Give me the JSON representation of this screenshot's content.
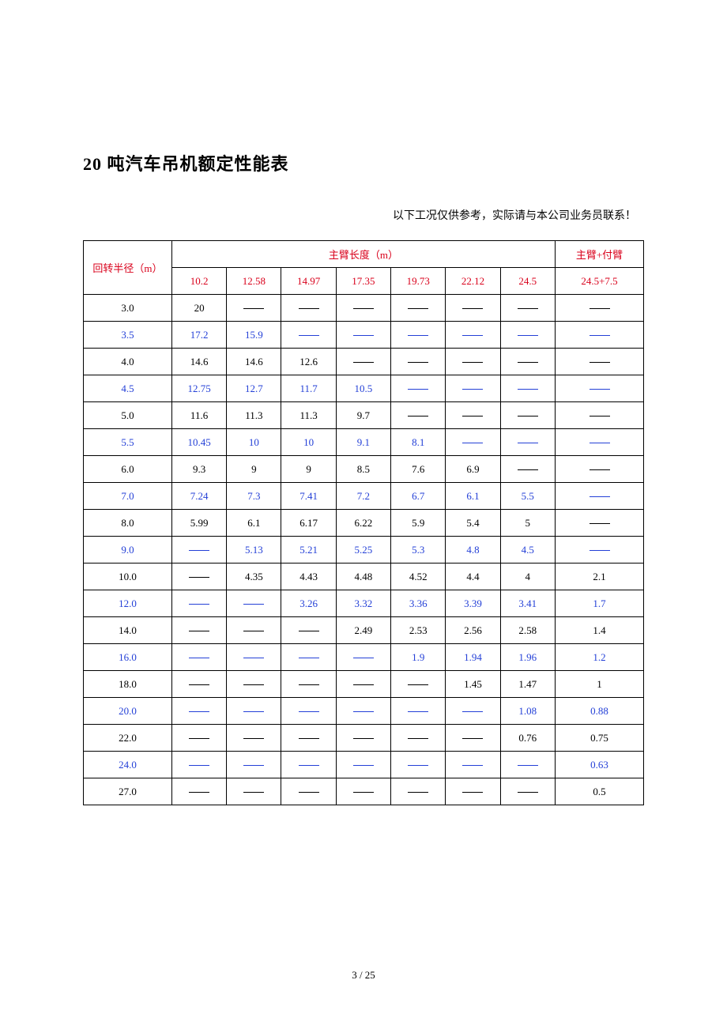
{
  "title": "20 吨汽车吊机额定性能表",
  "subtitle": "以下工况仅供参考，实际请与本公司业务员联系！",
  "page_number": "3 / 25",
  "header": {
    "radius_label": "回转半径（m）",
    "boom_length_label": "主臂长度（m）",
    "jib_label": "主臂+付臂",
    "boom_lengths": [
      "10.2",
      "12.58",
      "14.97",
      "17.35",
      "19.73",
      "22.12",
      "24.5"
    ],
    "jib_length": "24.5+7.5"
  },
  "colors": {
    "header_red": "#d9001b",
    "blue": "#2440d7",
    "black": "#000000",
    "border": "#000000",
    "background": "#ffffff"
  },
  "rows": [
    {
      "radius": "3.0",
      "blue": false,
      "cells": [
        "20",
        "—",
        "—",
        "—",
        "—",
        "—",
        "—",
        "—"
      ]
    },
    {
      "radius": "3.5",
      "blue": true,
      "cells": [
        "17.2",
        "15.9",
        "—",
        "—",
        "—",
        "—",
        "—",
        "—"
      ]
    },
    {
      "radius": "4.0",
      "blue": false,
      "cells": [
        "14.6",
        "14.6",
        "12.6",
        "—",
        "—",
        "—",
        "—",
        "—"
      ]
    },
    {
      "radius": "4.5",
      "blue": true,
      "cells": [
        "12.75",
        "12.7",
        "11.7",
        "10.5",
        "—",
        "—",
        "—",
        "—"
      ]
    },
    {
      "radius": "5.0",
      "blue": false,
      "cells": [
        "11.6",
        "11.3",
        "11.3",
        "9.7",
        "—",
        "—",
        "—",
        "—"
      ]
    },
    {
      "radius": "5.5",
      "blue": true,
      "cells": [
        "10.45",
        "10",
        "10",
        "9.1",
        "8.1",
        "—",
        "—",
        "—"
      ]
    },
    {
      "radius": "6.0",
      "blue": false,
      "cells": [
        "9.3",
        "9",
        "9",
        "8.5",
        "7.6",
        "6.9",
        "—",
        "—"
      ]
    },
    {
      "radius": "7.0",
      "blue": true,
      "cells": [
        "7.24",
        "7.3",
        "7.41",
        "7.2",
        "6.7",
        "6.1",
        "5.5",
        "—"
      ]
    },
    {
      "radius": "8.0",
      "blue": false,
      "cells": [
        "5.99",
        "6.1",
        "6.17",
        "6.22",
        "5.9",
        "5.4",
        "5",
        "—"
      ]
    },
    {
      "radius": "9.0",
      "blue": true,
      "cells": [
        "—",
        "5.13",
        "5.21",
        "5.25",
        "5.3",
        "4.8",
        "4.5",
        "—"
      ]
    },
    {
      "radius": "10.0",
      "blue": false,
      "cells": [
        "—",
        "4.35",
        "4.43",
        "4.48",
        "4.52",
        "4.4",
        "4",
        "2.1"
      ]
    },
    {
      "radius": "12.0",
      "blue": true,
      "cells": [
        "—",
        "—",
        "3.26",
        "3.32",
        "3.36",
        "3.39",
        "3.41",
        "1.7"
      ]
    },
    {
      "radius": "14.0",
      "blue": false,
      "cells": [
        "—",
        "—",
        "—",
        "2.49",
        "2.53",
        "2.56",
        "2.58",
        "1.4"
      ]
    },
    {
      "radius": "16.0",
      "blue": true,
      "cells": [
        "—",
        "—",
        "—",
        "—",
        "1.9",
        "1.94",
        "1.96",
        "1.2"
      ]
    },
    {
      "radius": "18.0",
      "blue": false,
      "cells": [
        "—",
        "—",
        "—",
        "—",
        "—",
        "1.45",
        "1.47",
        "1"
      ]
    },
    {
      "radius": "20.0",
      "blue": true,
      "cells": [
        "—",
        "—",
        "—",
        "—",
        "—",
        "—",
        "1.08",
        "0.88"
      ]
    },
    {
      "radius": "22.0",
      "blue": false,
      "cells": [
        "—",
        "—",
        "—",
        "—",
        "—",
        "—",
        "0.76",
        "0.75"
      ]
    },
    {
      "radius": "24.0",
      "blue": true,
      "cells": [
        "—",
        "—",
        "—",
        "—",
        "—",
        "—",
        "—",
        "0.63"
      ]
    },
    {
      "radius": "27.0",
      "blue": false,
      "cells": [
        "—",
        "—",
        "—",
        "—",
        "—",
        "—",
        "—",
        "0.5"
      ]
    }
  ]
}
